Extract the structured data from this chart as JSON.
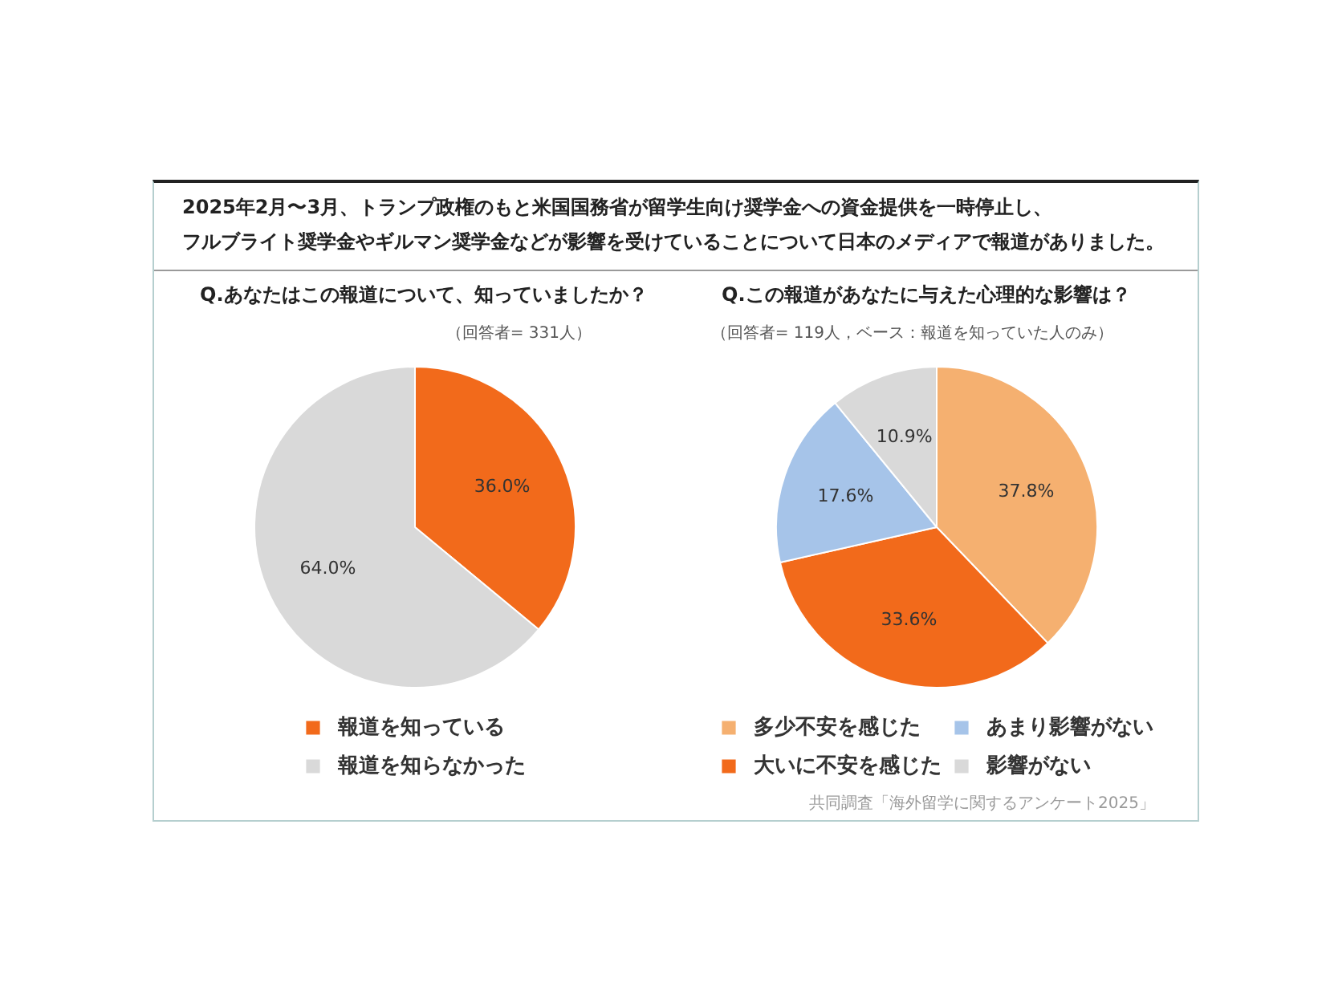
{
  "chart_data": [
    {
      "type": "other",
      "title": "2025年2月〜3月、トランプ政権のもと米国国務省が留学生向け奨学金への資金提供を一時停止し、フルブライト奨学金やギルマン奨学金などが影響を受けていることについて日本のメディアで報道がありました。"
    },
    {
      "type": "pie",
      "title": "Q.あなたはこの報道について、知っていましたか？",
      "subtitle": "（回答者= 331人）",
      "categories": [
        "報道を知っている",
        "報道を知らなかった"
      ],
      "values": [
        36.0,
        64.0
      ],
      "colors": [
        "#f26a1b",
        "#d9d9d9"
      ],
      "value_labels": [
        "36.0%",
        "64.0%"
      ],
      "legend": "bottom"
    },
    {
      "type": "pie",
      "title": "Q.この報道があなたに与えた心理的な影響は？",
      "subtitle": "（回答者= 119人，ベース：報道を知っていた人のみ）",
      "categories": [
        "多少不安を感じた",
        "大いに不安を感じた",
        "あまり影響がない",
        "影響がない"
      ],
      "values": [
        37.8,
        33.6,
        17.6,
        10.9
      ],
      "colors": [
        "#f5b070",
        "#f26a1b",
        "#a6c4e9",
        "#d9d9d9"
      ],
      "value_labels": [
        "37.8%",
        "33.6%",
        "17.6%",
        "10.9%"
      ],
      "legend": "bottom",
      "annotations": [
        "共同調査「海外留学に関するアンケート2025」"
      ]
    }
  ]
}
